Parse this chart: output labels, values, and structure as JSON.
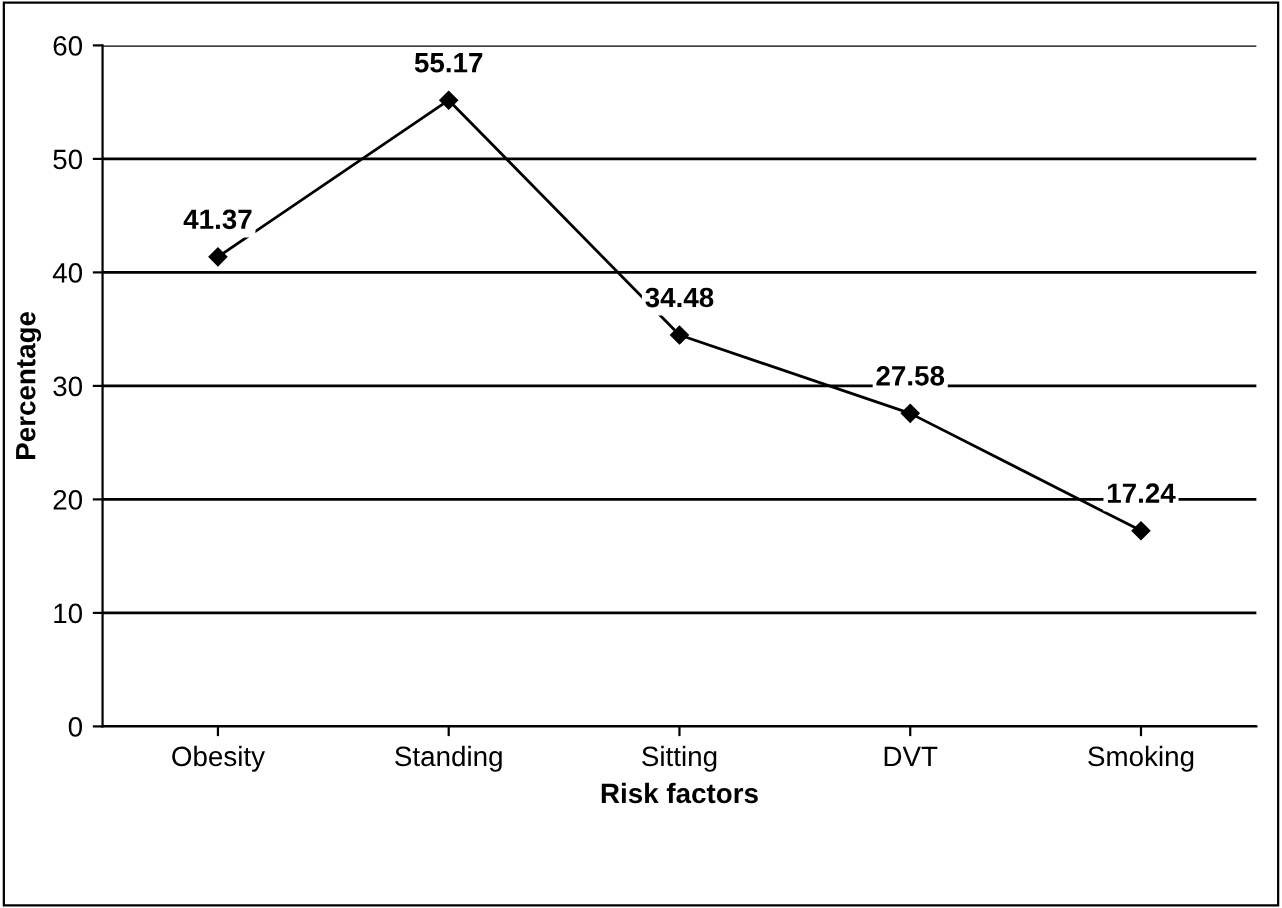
{
  "chart_data": {
    "type": "line",
    "xlabel": "Risk factors",
    "ylabel": "Percentage",
    "categories": [
      "Obesity",
      "Standing",
      "Sitting",
      "DVT",
      "Smoking"
    ],
    "series": [
      {
        "color": "#000000",
        "values": [
          41.37,
          55.17,
          34.48,
          27.58,
          17.24
        ]
      }
    ],
    "ylim": [
      0,
      60
    ],
    "yticks": [
      0,
      10,
      20,
      30,
      40,
      50,
      60
    ],
    "grid": "y",
    "marker": "diamond",
    "line_style": "solid",
    "data_labels": true
  }
}
